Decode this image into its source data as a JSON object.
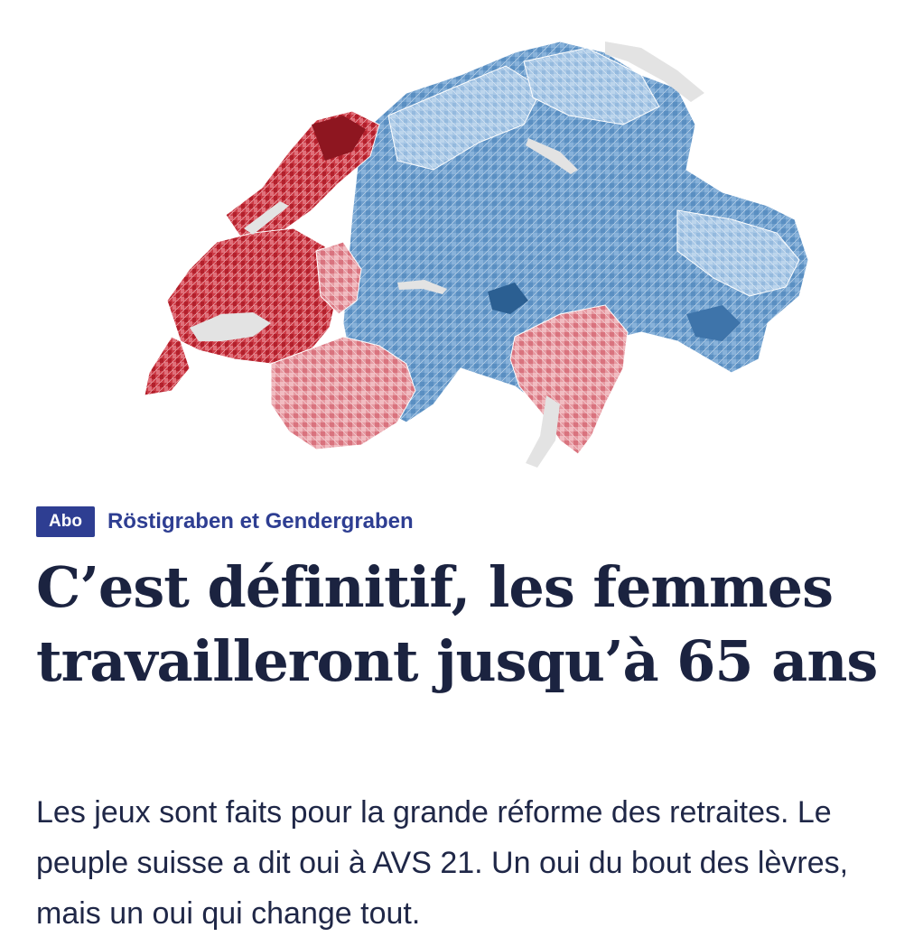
{
  "article": {
    "badge": "Abo",
    "kicker": "Röstigraben et Gendergraben",
    "headline": "C’est définitif, les femmes travailleront jusqu’à 65 ans",
    "lead": "Les jeux sont faits pour la grande réforme des retraites. Le peuple suisse a dit oui à AVS 21. Un oui du bout des lèvres, mais un oui qui change tout."
  },
  "colors": {
    "badge_bg": "#2e3e92",
    "headline": "#1b2340",
    "yes_dark": "#2f6aa3",
    "yes_light": "#a9c8e6",
    "no_dark": "#b3202c",
    "no_light": "#eaa3aa",
    "lakes": "#e3e3e3"
  }
}
